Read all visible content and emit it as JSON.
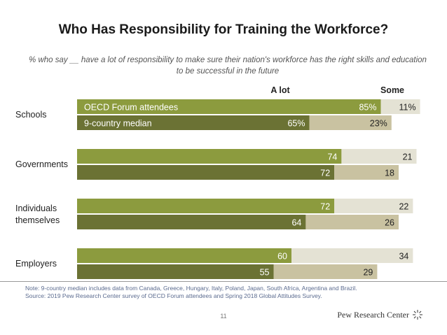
{
  "title": "Who Has Responsibility for Training the Workforce?",
  "subtitle": "% who say __ have a lot of responsibility to make sure their nation's workforce has the right skills and education to be successful in the future",
  "notes": [
    "Note: 9-country median includes data from Canada, Greece, Hungary, Italy, Poland, Japan, South Africa, Argentina and Brazil.",
    "Source: 2019 Pew Research Center survey of OECD Forum attendees and Spring 2018 Global Attitudes Survey."
  ],
  "page_number": "11",
  "brand": "Pew Research Center",
  "colors": {
    "alot_oecd": "#8c9b3e",
    "alot_median": "#6b7234",
    "some_oecd": "#e4e2d4",
    "some_median": "#c9c2a1"
  },
  "chart_data": {
    "type": "bar",
    "orientation": "horizontal",
    "stacked": true,
    "column_headers": [
      "A lot",
      "Some"
    ],
    "categories": [
      "Schools",
      "Governments",
      "Individuals themselves",
      "Employers"
    ],
    "category_labels": [
      [
        "Schools"
      ],
      [
        "Governments"
      ],
      [
        "Individuals",
        "themselves"
      ],
      [
        "Employers"
      ]
    ],
    "series": [
      {
        "name": "OECD Forum attendees",
        "alot": [
          85,
          74,
          72,
          60
        ],
        "some": [
          11,
          21,
          22,
          34
        ]
      },
      {
        "name": "9-country median",
        "alot": [
          65,
          72,
          64,
          55
        ],
        "some": [
          23,
          18,
          26,
          29
        ]
      }
    ],
    "value_labels": [
      {
        "oecd_alot": "85%",
        "oecd_some": "11%",
        "median_alot": "65%",
        "median_some": "23%"
      },
      {
        "oecd_alot": "74",
        "oecd_some": "21",
        "median_alot": "72",
        "median_some": "18"
      },
      {
        "oecd_alot": "72",
        "oecd_some": "22",
        "median_alot": "64",
        "median_some": "26"
      },
      {
        "oecd_alot": "60",
        "oecd_some": "34",
        "median_alot": "55",
        "median_some": "29"
      }
    ],
    "xlim": [
      0,
      100
    ]
  }
}
